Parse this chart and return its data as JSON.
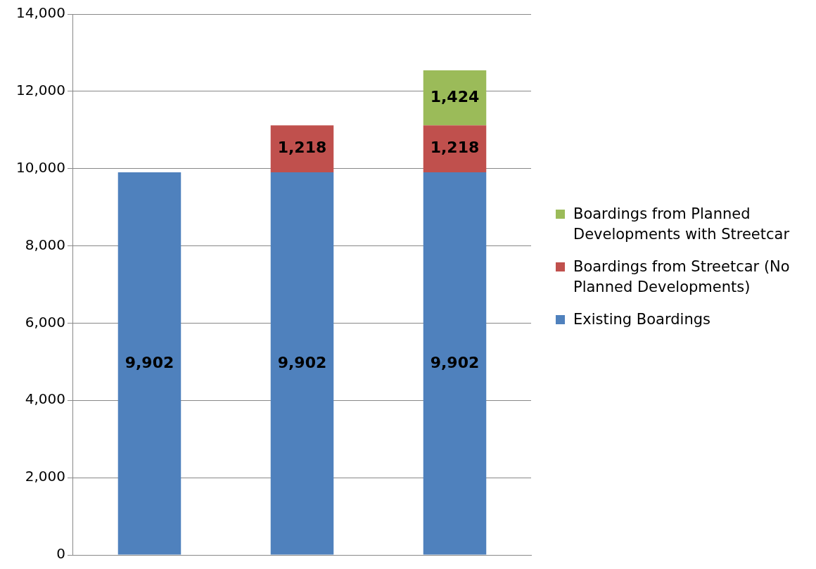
{
  "chart_data": {
    "type": "bar",
    "stacked": true,
    "categories": [
      null,
      null,
      null
    ],
    "series": [
      {
        "name": "Existing Boardings",
        "color": "#4f81bd",
        "values": [
          9902,
          9902,
          9902
        ],
        "value_labels": [
          "9,902",
          "9,902",
          "9,902"
        ]
      },
      {
        "name": "Boardings from Streetcar (No Planned Developments)",
        "color": "#c0504d",
        "values": [
          null,
          1218,
          1218
        ],
        "value_labels": [
          null,
          "1,218",
          "1,218"
        ]
      },
      {
        "name": "Boardings from Planned Developments with Streetcar",
        "color": "#9bbb59",
        "values": [
          null,
          null,
          1424
        ],
        "value_labels": [
          null,
          null,
          "1,424"
        ]
      }
    ],
    "ylim": [
      0,
      14000
    ],
    "yticks": [
      {
        "value": 0,
        "label": "0"
      },
      {
        "value": 2000,
        "label": "2,000"
      },
      {
        "value": 4000,
        "label": "4,000"
      },
      {
        "value": 6000,
        "label": "6,000"
      },
      {
        "value": 8000,
        "label": "8,000"
      },
      {
        "value": 10000,
        "label": "10,000"
      },
      {
        "value": 12000,
        "label": "12,000"
      },
      {
        "value": 14000,
        "label": "14,000"
      }
    ],
    "grid": "y",
    "legend": "right",
    "tick_labels": "y"
  }
}
